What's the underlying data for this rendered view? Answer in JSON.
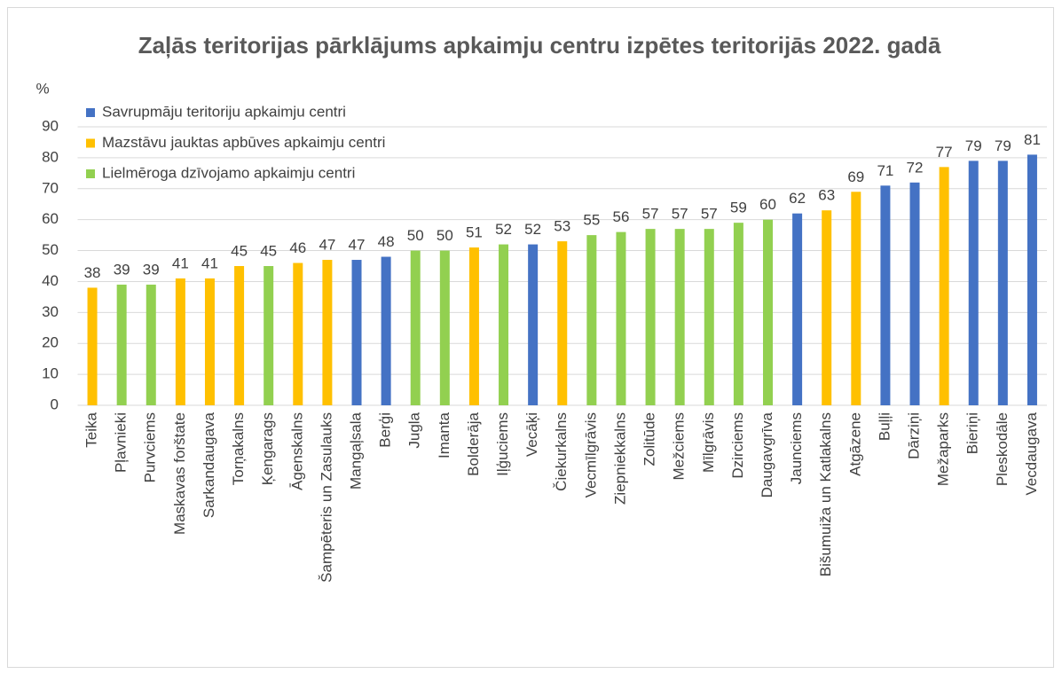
{
  "chart_data": {
    "type": "bar",
    "title": "Zaļās teritorijas pārklājums apkaimju centru izpētes teritorijās 2022. gadā",
    "y_label": "%",
    "categories": [
      "Teika",
      "Pļavnieki",
      "Purvciems",
      "Maskavas forštate",
      "Sarkandaugava",
      "Torņakalns",
      "Ķengarags",
      "Āgenskalns",
      "Šampēteris un Zasulauks",
      "Mangaļsala",
      "Berģi",
      "Jugla",
      "Imanta",
      "Bolderāja",
      "Iļģuciems",
      "Vecāķi",
      "Čiekurkalns",
      "Vecmīlgrāvis",
      "Ziepniekkalns",
      "Zolitūde",
      "Mežciems",
      "Mīlgrāvis",
      "Dzirciems",
      "Daugavgrīva",
      "Jaunciems",
      "Bišumuiža un Katlakalns",
      "Atgāzene",
      "Buļļi",
      "Dārziņi",
      "Mežaparks",
      "Bieriņi",
      "Pleskodāle",
      "Vecdaugava"
    ],
    "series": [
      {
        "name": "Savrupmāju teritoriju apkaimju centri",
        "color": "#4472c4",
        "values": [
          null,
          null,
          null,
          null,
          null,
          null,
          null,
          null,
          null,
          47,
          48,
          null,
          null,
          null,
          null,
          52,
          null,
          null,
          null,
          null,
          null,
          null,
          null,
          null,
          62,
          null,
          null,
          71,
          72,
          null,
          79,
          79,
          81
        ]
      },
      {
        "name": "Mazstāvu jauktas apbūves apkaimju centri",
        "color": "#ffc000",
        "values": [
          38,
          null,
          null,
          41,
          41,
          45,
          null,
          46,
          47,
          null,
          null,
          null,
          null,
          51,
          null,
          null,
          53,
          null,
          null,
          null,
          null,
          null,
          null,
          null,
          null,
          63,
          69,
          null,
          null,
          77,
          null,
          null,
          null
        ]
      },
      {
        "name": "Lielmēroga dzīvojamo apkaimju centri",
        "color": "#92d050",
        "values": [
          null,
          39,
          39,
          null,
          null,
          null,
          45,
          null,
          null,
          null,
          null,
          50,
          50,
          null,
          52,
          null,
          null,
          55,
          56,
          57,
          57,
          57,
          59,
          60,
          null,
          null,
          null,
          null,
          null,
          null,
          null,
          null,
          null
        ]
      }
    ],
    "ylim": [
      0,
      90
    ],
    "yticks": [
      0,
      10,
      20,
      30,
      40,
      50,
      60,
      70,
      80,
      90
    ],
    "grid": true
  }
}
